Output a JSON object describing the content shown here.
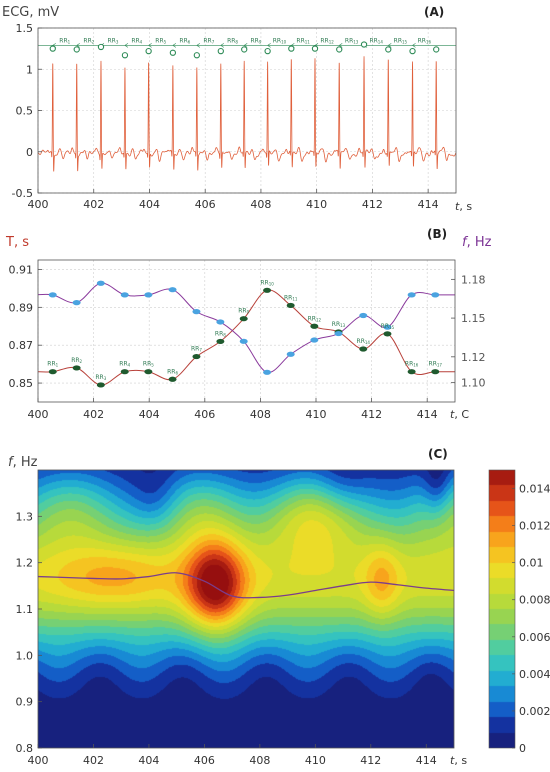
{
  "chart_data": [
    {
      "panel": "(A)",
      "type": "line",
      "ylabel": "ECG, mV",
      "xlabel_t": "t",
      "xlabel_unit": ", s",
      "xlim": [
        400,
        415
      ],
      "ylim": [
        -0.5,
        1.5
      ],
      "xticks": [
        "400",
        "402",
        "404",
        "406",
        "408",
        "410",
        "412",
        "414"
      ],
      "yticks": [
        "-0.5",
        "0",
        "0.5",
        "1",
        "1.5"
      ],
      "rr_label": "RR",
      "r_peaks": [
        {
          "t": 400.53,
          "v": 1.13
        },
        {
          "t": 401.39,
          "v": 1.12
        },
        {
          "t": 402.26,
          "v": 1.15
        },
        {
          "t": 403.12,
          "v": 1.05
        },
        {
          "t": 403.97,
          "v": 1.1
        },
        {
          "t": 404.84,
          "v": 1.08
        },
        {
          "t": 405.7,
          "v": 1.05
        },
        {
          "t": 406.56,
          "v": 1.1
        },
        {
          "t": 407.4,
          "v": 1.12
        },
        {
          "t": 408.24,
          "v": 1.1
        },
        {
          "t": 409.09,
          "v": 1.13
        },
        {
          "t": 409.94,
          "v": 1.13
        },
        {
          "t": 410.81,
          "v": 1.12
        },
        {
          "t": 411.7,
          "v": 1.18
        },
        {
          "t": 412.57,
          "v": 1.12
        },
        {
          "t": 413.44,
          "v": 1.1
        },
        {
          "t": 414.29,
          "v": 1.12
        }
      ]
    },
    {
      "panel": "(B)",
      "type": "line",
      "ylabel_left": "T, s",
      "ylabel_right_f": "f",
      "ylabel_right_unit": ", Hz",
      "xlabel_t": "t",
      "xlabel_unit": ", C",
      "xlim": [
        400,
        415
      ],
      "ylim_left": [
        0.84,
        0.915
      ],
      "ylim_right": [
        1.085,
        1.195
      ],
      "xticks": [
        "400",
        "402",
        "404",
        "406",
        "408",
        "410",
        "412",
        "414"
      ],
      "yticks_left": [
        "0.85",
        "0.87",
        "0.89",
        "0.91"
      ],
      "yticks_right": [
        "1.10",
        "1.12",
        "1.15",
        "1.18"
      ],
      "rr_label": "RR",
      "series": [
        {
          "color": "#b8413a",
          "marker": "#1f5a2e",
          "points": [
            {
              "t": 400.53,
              "v": 0.856
            },
            {
              "t": 401.39,
              "v": 0.858
            },
            {
              "t": 402.26,
              "v": 0.849
            },
            {
              "t": 403.12,
              "v": 0.856
            },
            {
              "t": 403.97,
              "v": 0.856
            },
            {
              "t": 404.84,
              "v": 0.852
            },
            {
              "t": 405.7,
              "v": 0.864
            },
            {
              "t": 406.56,
              "v": 0.872
            },
            {
              "t": 407.4,
              "v": 0.884
            },
            {
              "t": 408.24,
              "v": 0.899
            },
            {
              "t": 409.09,
              "v": 0.891
            },
            {
              "t": 409.94,
              "v": 0.88
            },
            {
              "t": 410.81,
              "v": 0.877
            },
            {
              "t": 411.7,
              "v": 0.868
            },
            {
              "t": 412.57,
              "v": 0.876
            },
            {
              "t": 413.44,
              "v": 0.856
            },
            {
              "t": 414.29,
              "v": 0.856
            }
          ]
        },
        {
          "color": "#8a3a9c",
          "marker": "#4aa3e0",
          "points": [
            {
              "t": 400.53,
              "v": 1.168
            },
            {
              "t": 401.39,
              "v": 1.162
            },
            {
              "t": 402.26,
              "v": 1.177
            },
            {
              "t": 403.12,
              "v": 1.168
            },
            {
              "t": 403.97,
              "v": 1.168
            },
            {
              "t": 404.84,
              "v": 1.172
            },
            {
              "t": 405.7,
              "v": 1.155
            },
            {
              "t": 406.56,
              "v": 1.147
            },
            {
              "t": 407.4,
              "v": 1.132
            },
            {
              "t": 408.24,
              "v": 1.108
            },
            {
              "t": 409.09,
              "v": 1.122
            },
            {
              "t": 409.94,
              "v": 1.133
            },
            {
              "t": 410.81,
              "v": 1.138
            },
            {
              "t": 411.7,
              "v": 1.152
            },
            {
              "t": 412.57,
              "v": 1.143
            },
            {
              "t": 413.44,
              "v": 1.168
            },
            {
              "t": 414.29,
              "v": 1.168
            }
          ]
        }
      ]
    },
    {
      "panel": "(C)",
      "type": "heatmap",
      "ylabel_f": "f",
      "ylabel_unit": ", Hz",
      "xlabel_t": "t",
      "xlabel_unit": ", s",
      "xlim": [
        400,
        415
      ],
      "ylim": [
        0.8,
        1.4
      ],
      "xticks": [
        "400",
        "402",
        "404",
        "406",
        "408",
        "410",
        "412",
        "414"
      ],
      "yticks": [
        "0.8",
        "0.9",
        "1.0",
        "1.1",
        "1.2",
        "1.3"
      ],
      "colorbar_range": [
        0,
        0.015
      ],
      "colorbar_ticks": [
        "0",
        "0.002",
        "0.004",
        "0.006",
        "0.008",
        "0.01",
        "0.012",
        "0.014"
      ],
      "ridge_color": "#7a3d8c",
      "ridge": [
        {
          "t": 400,
          "f": 1.17
        },
        {
          "t": 401,
          "f": 1.168
        },
        {
          "t": 402,
          "f": 1.166
        },
        {
          "t": 403,
          "f": 1.165
        },
        {
          "t": 404,
          "f": 1.17
        },
        {
          "t": 405,
          "f": 1.178
        },
        {
          "t": 406,
          "f": 1.16
        },
        {
          "t": 407,
          "f": 1.128
        },
        {
          "t": 408,
          "f": 1.125
        },
        {
          "t": 409,
          "f": 1.13
        },
        {
          "t": 410,
          "f": 1.14
        },
        {
          "t": 411,
          "f": 1.15
        },
        {
          "t": 412,
          "f": 1.158
        },
        {
          "t": 413,
          "f": 1.152
        },
        {
          "t": 414,
          "f": 1.145
        },
        {
          "t": 415,
          "f": 1.14
        }
      ],
      "hotspots": [
        {
          "t": 406.4,
          "f": 1.15,
          "v": 0.015
        },
        {
          "t": 402.7,
          "f": 1.17,
          "v": 0.0108
        },
        {
          "t": 412.4,
          "f": 1.16,
          "v": 0.0102
        }
      ]
    }
  ]
}
